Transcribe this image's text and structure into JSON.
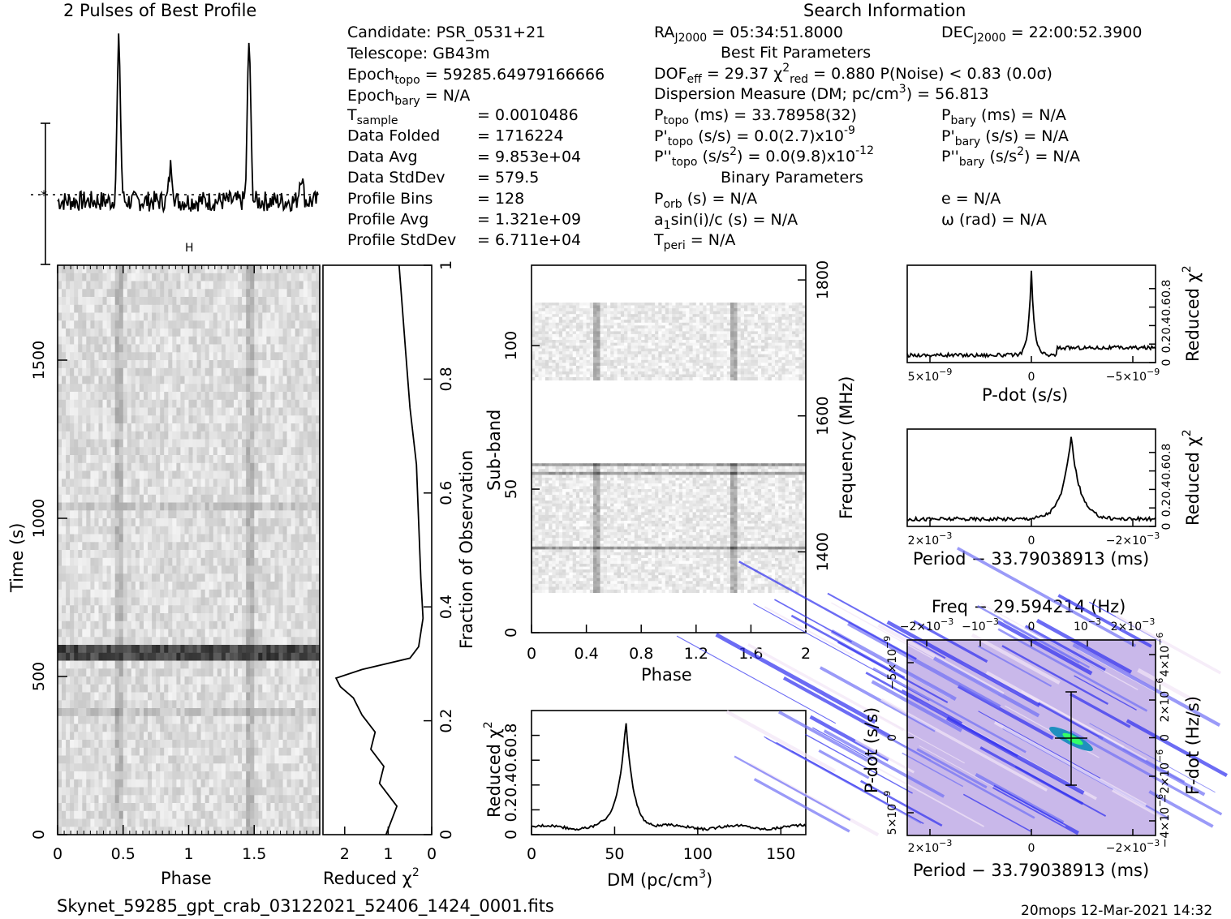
{
  "footer": {
    "filename": "Skynet_59285_gpt_crab_03122021_52406_1424_0001.fits",
    "stamp": "20mops 12-Mar-2021 14:32"
  },
  "headers": {
    "profile_title": "2 Pulses of Best Profile",
    "search_info": "Search Information",
    "best_fit": "Best Fit Parameters",
    "binary": "Binary Parameters"
  },
  "info": {
    "candidate": "Candidate:  PSR_0531+21",
    "telescope": "Telescope:  GB43m",
    "epoch_topo": "Epoch",
    "epoch_topo_sub": "topo",
    "epoch_topo_val": " = 59285.64979166666",
    "epoch_bary": "Epoch",
    "epoch_bary_sub": "bary",
    "epoch_bary_val": " = N/A",
    "rows": [
      {
        "k": "T",
        "sub": "sample",
        "v": "=   0.0010486"
      },
      {
        "k": "Data Folded",
        "sub": "",
        "v": "=   1716224"
      },
      {
        "k": "Data Avg",
        "sub": "",
        "v": "=   9.853e+04"
      },
      {
        "k": "Data StdDev",
        "sub": "",
        "v": "=   579.5"
      },
      {
        "k": "Profile Bins",
        "sub": "",
        "v": "=   128"
      },
      {
        "k": "Profile Avg",
        "sub": "",
        "v": "=   1.321e+09"
      },
      {
        "k": "Profile StdDev",
        "sub": "",
        "v": "=   6.711e+04"
      }
    ],
    "ra": "= 05:34:51.8000",
    "dec": "= 22:00:52.3900",
    "dof_line": "= 29.37  χ",
    "chi_val": "= 0.880  P(Noise) < 0.83  (0.0σ)",
    "dm_line": "Dispersion Measure (DM; pc/cm",
    "dm_val": ") = 56.813",
    "ptopo": "(ms) =  33.78958(32)",
    "pdtopo": "(s/s) = 0.0(2.7)x10",
    "pdtopo_exp": "-9",
    "pddtopo": "(s/s",
    "pddtopo_val": ") = 0.0(9.8)x10",
    "pddtopo_exp": "-12",
    "pbary": "(ms) = N/A",
    "pdbary": "(s/s) = N/A",
    "pddbary": "(s/s",
    "pddbary_val": ") = N/A",
    "porb": "(s) = N/A",
    "asini": "a",
    "asini_val": "sin(i)/c (s) = N/A",
    "tperi": " = N/A",
    "ecc": "e = N/A",
    "omega": "ω (rad) = N/A"
  },
  "chart_data": [
    {
      "type": "line",
      "title": "2 Pulses of Best Profile",
      "xlabel": "",
      "ylabel": "",
      "x_range": [
        0,
        2
      ],
      "description_points": "profile intensity vs phase (two pulses)",
      "peaks_phase": [
        0.47,
        1.47
      ],
      "noise_level": 0.3,
      "peak_height": 1.0
    },
    {
      "type": "heatmap",
      "xlabel": "Phase",
      "ylabel": "Time (s)",
      "x_range": [
        0,
        2
      ],
      "y_range": [
        0,
        1800
      ],
      "xticks": [
        "0",
        "0.5",
        "1",
        "1.5"
      ],
      "yticks": [
        "0",
        "500",
        "1000",
        "1500"
      ],
      "dark_band_time": [
        545,
        590
      ]
    },
    {
      "type": "line",
      "xlabel": "Reduced χ",
      "ylabel": "Fraction of Observation",
      "x_range": [
        2.5,
        0
      ],
      "y_range": [
        0,
        1
      ],
      "xticks": [
        "2",
        "1",
        "0"
      ],
      "yticks": [
        "0",
        "0.2",
        "0.4",
        "0.6",
        "0.8",
        "1"
      ],
      "points": [
        [
          1.05,
          0.0
        ],
        [
          0.9,
          0.03
        ],
        [
          0.8,
          0.05
        ],
        [
          1.2,
          0.09
        ],
        [
          1.1,
          0.12
        ],
        [
          1.4,
          0.15
        ],
        [
          1.3,
          0.18
        ],
        [
          1.6,
          0.21
        ],
        [
          1.8,
          0.24
        ],
        [
          2.1,
          0.26
        ],
        [
          2.2,
          0.275
        ],
        [
          1.6,
          0.29
        ],
        [
          0.5,
          0.31
        ],
        [
          0.3,
          0.33
        ],
        [
          0.2,
          0.38
        ],
        [
          0.25,
          0.45
        ],
        [
          0.3,
          0.55
        ],
        [
          0.35,
          0.65
        ],
        [
          0.5,
          0.75
        ],
        [
          0.6,
          0.85
        ],
        [
          0.7,
          0.95
        ],
        [
          0.75,
          1.0
        ]
      ]
    },
    {
      "type": "heatmap",
      "xlabel": "Phase",
      "ylabel": "Sub-band",
      "y2label": "Frequency (MHz)",
      "x_range": [
        0,
        2
      ],
      "y_range": [
        0,
        128
      ],
      "xticks": [
        "0",
        "0.4",
        "0.8",
        "1.2",
        "1.6",
        "2"
      ],
      "yticks": [
        "0",
        "50",
        "100"
      ],
      "y2ticks": [
        "1400",
        "1600",
        "1800"
      ],
      "empty_bands": [
        [
          0,
          14
        ],
        [
          59,
          88
        ],
        [
          115,
          128
        ]
      ]
    },
    {
      "type": "line",
      "xlabel": "DM (pc/cm",
      "ylabel": "Reduced χ",
      "x_range": [
        0,
        165
      ],
      "xticks": [
        "0",
        "50",
        "100",
        "150"
      ],
      "yticks": [
        "0",
        "0.2",
        "0.4",
        "0.6",
        "0.8"
      ],
      "peak_dm": 56.8,
      "peak_value": 0.88,
      "baseline": 0.06
    },
    {
      "type": "line",
      "xlabel": "P-dot (s/s)",
      "ylabel": "Reduced χ",
      "xticks": [
        "5×10",
        "0",
        "−5×10"
      ],
      "tick_exp": "−9",
      "yticks": [
        "0",
        "0.2",
        "0.4",
        "0.6",
        "0.8"
      ],
      "peak_x": 0.0
    },
    {
      "type": "line",
      "xlabel": "Period − 33.79038913 (ms)",
      "ylabel": "Reduced χ",
      "xticks": [
        "2×10",
        "0",
        "−2×10"
      ],
      "tick_exp": "−3",
      "yticks": [
        "0",
        "0.2",
        "0.4",
        "0.6",
        "0.8"
      ],
      "peak_x": -0.0008
    },
    {
      "type": "heatmap",
      "title": "Freq − 29.594214 (Hz)",
      "xlabel": "Period − 33.79038913 (ms)",
      "ylabel": "P-dot (s/s)",
      "y2label": "F-dot (Hz/s)",
      "xticks": [
        "2×10",
        "0",
        "−2×10"
      ],
      "top_ticks": [
        "−2×10",
        "−10",
        "0",
        "10",
        "2×10"
      ],
      "left_ticks": [
        "−5×10",
        "0",
        "5×10"
      ],
      "right_ticks": [
        "4×10",
        "2×10",
        "0",
        "−2×10",
        "−4×10"
      ]
    }
  ]
}
